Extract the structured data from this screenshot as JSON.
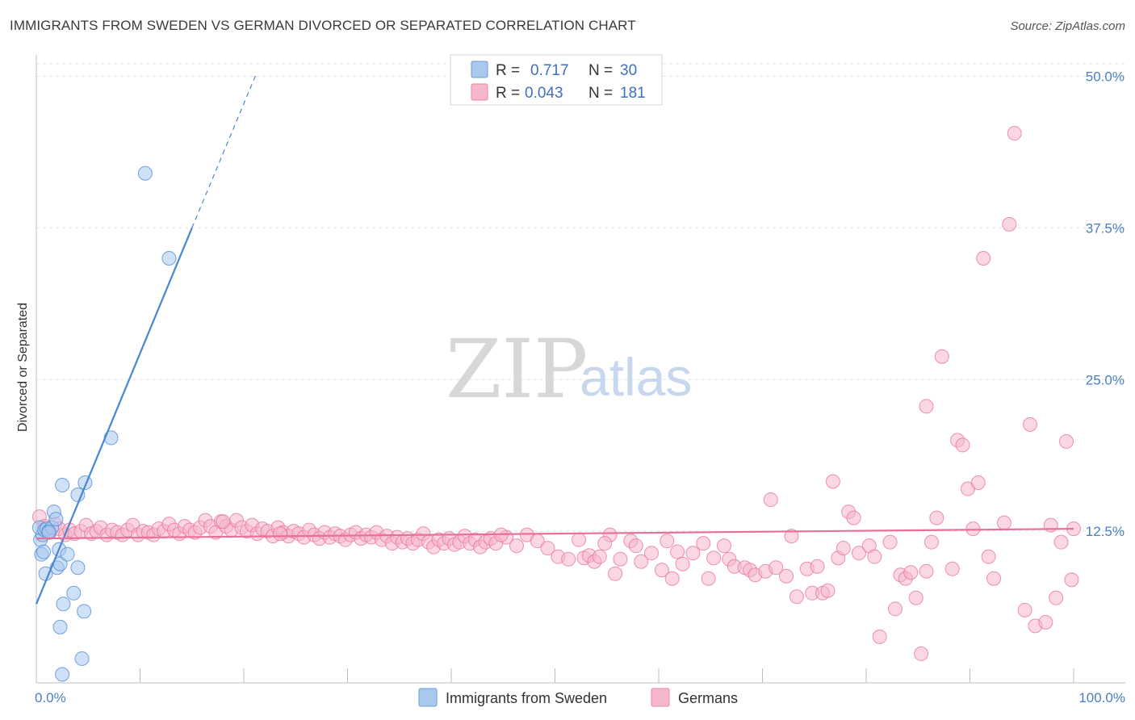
{
  "title": "IMMIGRANTS FROM SWEDEN VS GERMAN DIVORCED OR SEPARATED CORRELATION CHART",
  "source": "Source: ZipAtlas.com",
  "watermark": {
    "zip": "ZIP",
    "atlas": "atlas"
  },
  "legend_box": {
    "rows": [
      {
        "r_label": "R = ",
        "r_value": "0.717",
        "n_label": "N = ",
        "n_value": "30",
        "color": "#a8c8ee"
      },
      {
        "r_label": "R = ",
        "r_value": "0.043",
        "n_label": "N = ",
        "n_value": "181",
        "color": "#f6b6cb"
      }
    ]
  },
  "chart_data": {
    "type": "scatter",
    "title": "IMMIGRANTS FROM SWEDEN VS GERMAN DIVORCED OR SEPARATED CORRELATION CHART",
    "xlabel": "",
    "ylabel": "Divorced or Separated",
    "xlim": [
      0,
      100
    ],
    "ylim": [
      0,
      51.5
    ],
    "x_tick_labels": [
      "0.0%",
      "100.0%"
    ],
    "y_ticks": [
      12.5,
      25.0,
      37.5,
      50.0
    ],
    "y_tick_labels": [
      "12.5%",
      "25.0%",
      "37.5%",
      "50.0%"
    ],
    "grid": true,
    "legend_position": "bottom",
    "series": [
      {
        "name": "Immigrants from Sweden",
        "color": "#4a86d4",
        "fill": "#a8c8ee",
        "trend": {
          "x0": 0,
          "y0": 6.5,
          "x1": 15,
          "y1": 37.5,
          "dash_to_x": 21.2,
          "dash_to_y": 50.2
        },
        "points": [
          [
            0.4,
            11.8
          ],
          [
            0.6,
            12.2
          ],
          [
            0.3,
            12.8
          ],
          [
            0.8,
            12.6
          ],
          [
            1.0,
            12.7
          ],
          [
            1.2,
            12.5
          ],
          [
            1.5,
            12.8
          ],
          [
            1.7,
            14.1
          ],
          [
            0.5,
            10.6
          ],
          [
            0.7,
            10.8
          ],
          [
            1.9,
            13.5
          ],
          [
            2.2,
            11.0
          ],
          [
            0.9,
            9.0
          ],
          [
            2.0,
            9.5
          ],
          [
            2.3,
            9.8
          ],
          [
            3.0,
            10.6
          ],
          [
            4.0,
            9.5
          ],
          [
            2.5,
            16.3
          ],
          [
            4.0,
            15.5
          ],
          [
            4.7,
            16.5
          ],
          [
            7.2,
            20.2
          ],
          [
            3.6,
            7.4
          ],
          [
            2.6,
            6.5
          ],
          [
            4.6,
            5.9
          ],
          [
            2.3,
            4.6
          ],
          [
            4.4,
            2.0
          ],
          [
            2.5,
            0.7
          ],
          [
            10.5,
            42.0
          ],
          [
            12.8,
            35.0
          ],
          [
            1.2,
            12.4
          ]
        ]
      },
      {
        "name": "Germans",
        "color": "#e87097",
        "fill": "#f6b6cb",
        "trend": {
          "x0": 0,
          "y0": 11.9,
          "x1": 100,
          "y1": 12.7
        },
        "points": [
          [
            0.3,
            13.7
          ],
          [
            0.8,
            12.9
          ],
          [
            1.3,
            12.4
          ],
          [
            1.8,
            13.1
          ],
          [
            2.2,
            12.7
          ],
          [
            2.8,
            12.2
          ],
          [
            3.2,
            12.6
          ],
          [
            3.7,
            12.3
          ],
          [
            4.3,
            12.5
          ],
          [
            4.8,
            13.0
          ],
          [
            5.3,
            12.3
          ],
          [
            5.8,
            12.5
          ],
          [
            6.2,
            12.8
          ],
          [
            6.8,
            12.2
          ],
          [
            7.3,
            12.6
          ],
          [
            7.8,
            12.4
          ],
          [
            8.3,
            12.2
          ],
          [
            8.8,
            12.6
          ],
          [
            9.3,
            13.0
          ],
          [
            9.8,
            12.2
          ],
          [
            10.3,
            12.5
          ],
          [
            10.8,
            12.4
          ],
          [
            11.3,
            12.2
          ],
          [
            11.8,
            12.7
          ],
          [
            12.3,
            12.5
          ],
          [
            12.8,
            13.1
          ],
          [
            13.3,
            12.6
          ],
          [
            13.8,
            12.3
          ],
          [
            14.3,
            12.9
          ],
          [
            14.8,
            12.6
          ],
          [
            15.3,
            12.4
          ],
          [
            15.8,
            12.8
          ],
          [
            16.3,
            13.4
          ],
          [
            16.8,
            12.9
          ],
          [
            17.3,
            12.4
          ],
          [
            17.8,
            13.3
          ],
          [
            18.3,
            12.9
          ],
          [
            18.8,
            12.6
          ],
          [
            19.3,
            13.4
          ],
          [
            19.8,
            12.8
          ],
          [
            20.3,
            12.5
          ],
          [
            20.8,
            13.0
          ],
          [
            21.3,
            12.3
          ],
          [
            21.8,
            12.7
          ],
          [
            22.3,
            12.5
          ],
          [
            22.8,
            12.1
          ],
          [
            23.3,
            12.8
          ],
          [
            23.8,
            12.4
          ],
          [
            24.3,
            12.1
          ],
          [
            24.8,
            12.5
          ],
          [
            25.3,
            12.3
          ],
          [
            25.8,
            12.0
          ],
          [
            26.3,
            12.6
          ],
          [
            26.8,
            12.2
          ],
          [
            27.3,
            11.9
          ],
          [
            27.8,
            12.4
          ],
          [
            28.3,
            12.0
          ],
          [
            28.8,
            12.3
          ],
          [
            29.3,
            12.1
          ],
          [
            29.8,
            11.8
          ],
          [
            30.3,
            12.2
          ],
          [
            30.8,
            12.4
          ],
          [
            31.3,
            11.9
          ],
          [
            31.8,
            12.2
          ],
          [
            32.3,
            12.0
          ],
          [
            32.8,
            12.4
          ],
          [
            33.3,
            11.8
          ],
          [
            33.8,
            12.1
          ],
          [
            34.3,
            11.5
          ],
          [
            34.8,
            12.0
          ],
          [
            35.3,
            11.6
          ],
          [
            35.8,
            11.9
          ],
          [
            36.3,
            11.5
          ],
          [
            36.8,
            11.8
          ],
          [
            37.3,
            12.3
          ],
          [
            37.8,
            11.6
          ],
          [
            38.3,
            11.2
          ],
          [
            38.8,
            11.8
          ],
          [
            39.3,
            11.5
          ],
          [
            39.8,
            11.9
          ],
          [
            40.3,
            11.4
          ],
          [
            40.8,
            11.6
          ],
          [
            41.3,
            12.1
          ],
          [
            41.8,
            11.5
          ],
          [
            42.3,
            11.8
          ],
          [
            42.8,
            11.2
          ],
          [
            43.3,
            11.6
          ],
          [
            43.8,
            11.9
          ],
          [
            44.3,
            11.5
          ],
          [
            45.3,
            12.0
          ],
          [
            46.3,
            11.3
          ],
          [
            47.3,
            12.2
          ],
          [
            48.3,
            11.7
          ],
          [
            49.3,
            11.1
          ],
          [
            50.3,
            10.4
          ],
          [
            51.3,
            10.2
          ],
          [
            52.3,
            11.8
          ],
          [
            52.8,
            10.3
          ],
          [
            53.3,
            10.5
          ],
          [
            53.8,
            10.0
          ],
          [
            54.3,
            10.4
          ],
          [
            55.3,
            12.2
          ],
          [
            55.8,
            9.0
          ],
          [
            56.3,
            10.2
          ],
          [
            57.3,
            11.7
          ],
          [
            57.8,
            11.3
          ],
          [
            58.3,
            10.0
          ],
          [
            59.3,
            10.7
          ],
          [
            60.3,
            9.3
          ],
          [
            60.8,
            11.7
          ],
          [
            61.3,
            8.6
          ],
          [
            61.8,
            10.8
          ],
          [
            62.3,
            9.8
          ],
          [
            63.3,
            10.7
          ],
          [
            64.3,
            11.5
          ],
          [
            64.8,
            8.6
          ],
          [
            65.3,
            10.3
          ],
          [
            66.3,
            11.3
          ],
          [
            66.8,
            10.2
          ],
          [
            67.3,
            9.6
          ],
          [
            68.3,
            9.5
          ],
          [
            68.8,
            9.3
          ],
          [
            69.3,
            8.9
          ],
          [
            70.3,
            9.2
          ],
          [
            71.3,
            9.5
          ],
          [
            72.3,
            8.8
          ],
          [
            72.8,
            12.1
          ],
          [
            73.3,
            7.1
          ],
          [
            74.3,
            9.4
          ],
          [
            74.8,
            7.4
          ],
          [
            75.3,
            9.6
          ],
          [
            75.8,
            7.4
          ],
          [
            76.3,
            7.6
          ],
          [
            77.3,
            10.3
          ],
          [
            77.8,
            11.1
          ],
          [
            78.3,
            14.1
          ],
          [
            78.8,
            13.6
          ],
          [
            79.3,
            10.7
          ],
          [
            80.3,
            11.3
          ],
          [
            80.8,
            10.4
          ],
          [
            81.3,
            3.8
          ],
          [
            82.3,
            11.6
          ],
          [
            82.8,
            6.1
          ],
          [
            83.3,
            8.9
          ],
          [
            83.8,
            8.6
          ],
          [
            84.3,
            9.1
          ],
          [
            84.8,
            7.0
          ],
          [
            85.3,
            2.4
          ],
          [
            85.8,
            9.2
          ],
          [
            86.3,
            11.6
          ],
          [
            86.8,
            13.6
          ],
          [
            87.3,
            26.9
          ],
          [
            88.3,
            9.4
          ],
          [
            88.8,
            20.0
          ],
          [
            89.3,
            19.6
          ],
          [
            89.8,
            16.0
          ],
          [
            90.3,
            12.7
          ],
          [
            90.8,
            16.5
          ],
          [
            91.3,
            35.0
          ],
          [
            91.8,
            10.4
          ],
          [
            92.3,
            8.6
          ],
          [
            93.3,
            13.2
          ],
          [
            93.8,
            37.8
          ],
          [
            94.3,
            45.3
          ],
          [
            95.3,
            6.0
          ],
          [
            95.8,
            21.3
          ],
          [
            96.3,
            4.7
          ],
          [
            97.3,
            5.0
          ],
          [
            97.8,
            13.0
          ],
          [
            98.3,
            7.0
          ],
          [
            98.8,
            11.6
          ],
          [
            99.3,
            19.9
          ],
          [
            99.8,
            8.5
          ],
          [
            100.0,
            12.7
          ],
          [
            18.0,
            13.3
          ],
          [
            76.8,
            16.6
          ],
          [
            85.8,
            22.8
          ],
          [
            23.5,
            12.3
          ],
          [
            44.8,
            12.2
          ],
          [
            54.8,
            11.5
          ],
          [
            70.8,
            15.1
          ]
        ]
      }
    ]
  }
}
